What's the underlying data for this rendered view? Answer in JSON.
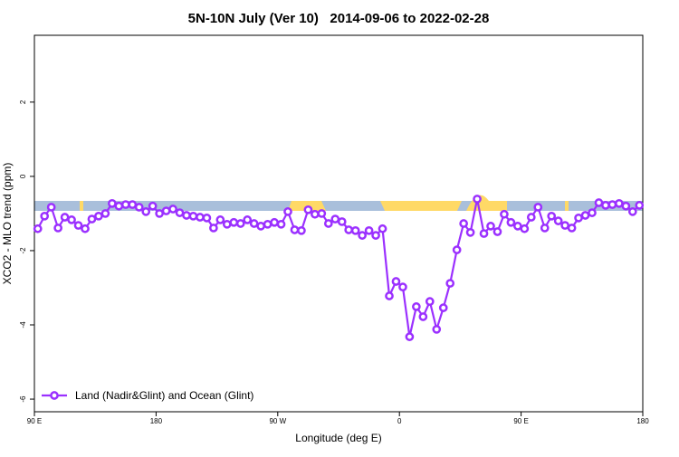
{
  "chart_data": {
    "type": "line",
    "title": "5N-10N July (Ver 10)   2014-09-06 to 2022-02-28",
    "xlabel": "Longitude (deg E)",
    "ylabel": "XCO2 - MLO trend (ppm)",
    "xlim": [
      90,
      540
    ],
    "ylim": [
      -6.34,
      3.8
    ],
    "xticks": [
      {
        "value": 90,
        "label": "90 E"
      },
      180,
      {
        "value": 270,
        "label": "90 W"
      },
      {
        "value": 360,
        "label": "0"
      },
      {
        "value": 450,
        "label": "90 E"
      },
      {
        "value": 540,
        "label": "180"
      }
    ],
    "yticks": [
      2,
      0,
      -2,
      -4,
      -6
    ],
    "x": [
      92.5,
      97.5,
      102.5,
      107.5,
      112.5,
      117.5,
      122.5,
      127.5,
      132.5,
      137.5,
      142.5,
      147.5,
      152.5,
      157.5,
      162.5,
      167.5,
      172.5,
      177.5,
      182.5,
      187.5,
      192.5,
      197.5,
      202.5,
      207.5,
      212.5,
      217.5,
      222.5,
      227.5,
      232.5,
      237.5,
      242.5,
      247.5,
      252.5,
      257.5,
      262.5,
      267.5,
      272.5,
      277.5,
      282.5,
      287.5,
      292.5,
      297.5,
      302.5,
      307.5,
      312.5,
      317.5,
      322.5,
      327.5,
      332.5,
      337.5,
      342.5,
      347.5,
      352.5,
      357.5,
      362.5,
      367.5,
      372.5,
      377.5,
      382.5,
      387.5,
      392.5,
      397.5,
      402.5,
      407.5,
      412.5,
      417.5,
      422.5,
      427.5,
      432.5,
      437.5,
      442.5,
      447.5,
      452.5,
      457.5,
      462.5,
      467.5,
      472.5,
      477.5,
      482.5,
      487.5,
      492.5,
      497.5,
      502.5,
      507.5,
      512.5,
      517.5,
      522.5,
      527.5,
      532.5,
      537.5
    ],
    "series": [
      {
        "name": "Land (Nadir&Glint) and Ocean (Glint)",
        "color": "#9b30ff",
        "values": [
          -1.41,
          -1.07,
          -0.83,
          -1.39,
          -1.1,
          -1.17,
          -1.32,
          -1.41,
          -1.15,
          -1.07,
          -1.0,
          -0.73,
          -0.8,
          -0.76,
          -0.76,
          -0.83,
          -0.95,
          -0.8,
          -1.0,
          -0.93,
          -0.88,
          -0.98,
          -1.05,
          -1.07,
          -1.1,
          -1.12,
          -1.39,
          -1.17,
          -1.29,
          -1.24,
          -1.27,
          -1.17,
          -1.27,
          -1.34,
          -1.29,
          -1.24,
          -1.29,
          -0.95,
          -1.44,
          -1.46,
          -0.9,
          -1.02,
          -1.0,
          -1.27,
          -1.15,
          -1.22,
          -1.44,
          -1.46,
          -1.59,
          -1.46,
          -1.59,
          -1.41,
          -3.22,
          -2.83,
          -2.98,
          -4.32,
          -3.51,
          -3.78,
          -3.37,
          -4.12,
          -3.54,
          -2.88,
          -1.98,
          -1.27,
          -1.51,
          -0.61,
          -1.54,
          -1.34,
          -1.49,
          -1.02,
          -1.24,
          -1.34,
          -1.41,
          -1.1,
          -0.83,
          -1.39,
          -1.07,
          -1.2,
          -1.32,
          -1.39,
          -1.12,
          -1.05,
          -0.98,
          -0.71,
          -0.78,
          -0.76,
          -0.73,
          -0.8,
          -0.95,
          -0.78
        ]
      }
    ],
    "legend": "bottom-left"
  }
}
